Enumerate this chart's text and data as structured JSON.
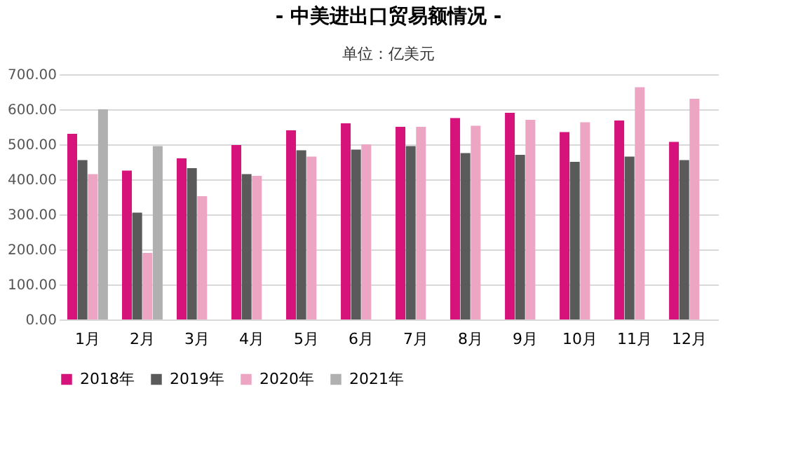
{
  "chart_data": {
    "type": "bar",
    "title": "- 中美进出口贸易额情况 -",
    "subtitle": "单位：亿美元",
    "categories": [
      "1月",
      "2月",
      "3月",
      "4月",
      "5月",
      "6月",
      "7月",
      "8月",
      "9月",
      "10月",
      "11月",
      "12月"
    ],
    "series": [
      {
        "name": "2018年",
        "color": "#d6137a",
        "values": [
          530,
          425,
          460,
          498,
          540,
          560,
          550,
          575,
          590,
          535,
          568,
          507
        ]
      },
      {
        "name": "2019年",
        "color": "#5a5a5a",
        "values": [
          455,
          305,
          432,
          415,
          483,
          485,
          495,
          475,
          470,
          450,
          465,
          455
        ]
      },
      {
        "name": "2020年",
        "color": "#eca6c4",
        "values": [
          415,
          190,
          352,
          410,
          465,
          500,
          550,
          553,
          570,
          563,
          663,
          630
        ]
      },
      {
        "name": "2021年",
        "color": "#b0b0b0",
        "values": [
          600,
          495,
          null,
          null,
          null,
          null,
          null,
          null,
          null,
          null,
          null,
          null
        ]
      }
    ],
    "ylim": [
      0,
      700
    ],
    "yticks": [
      {
        "value": 0,
        "label": "0.00"
      },
      {
        "value": 100,
        "label": "100.00"
      },
      {
        "value": 200,
        "label": "200.00"
      },
      {
        "value": 300,
        "label": "300.00"
      },
      {
        "value": 400,
        "label": "400.00"
      },
      {
        "value": 500,
        "label": "500.00"
      },
      {
        "value": 600,
        "label": "600.00"
      },
      {
        "value": 700,
        "label": "700.00"
      }
    ],
    "grid": "y",
    "legend": "bottom"
  }
}
